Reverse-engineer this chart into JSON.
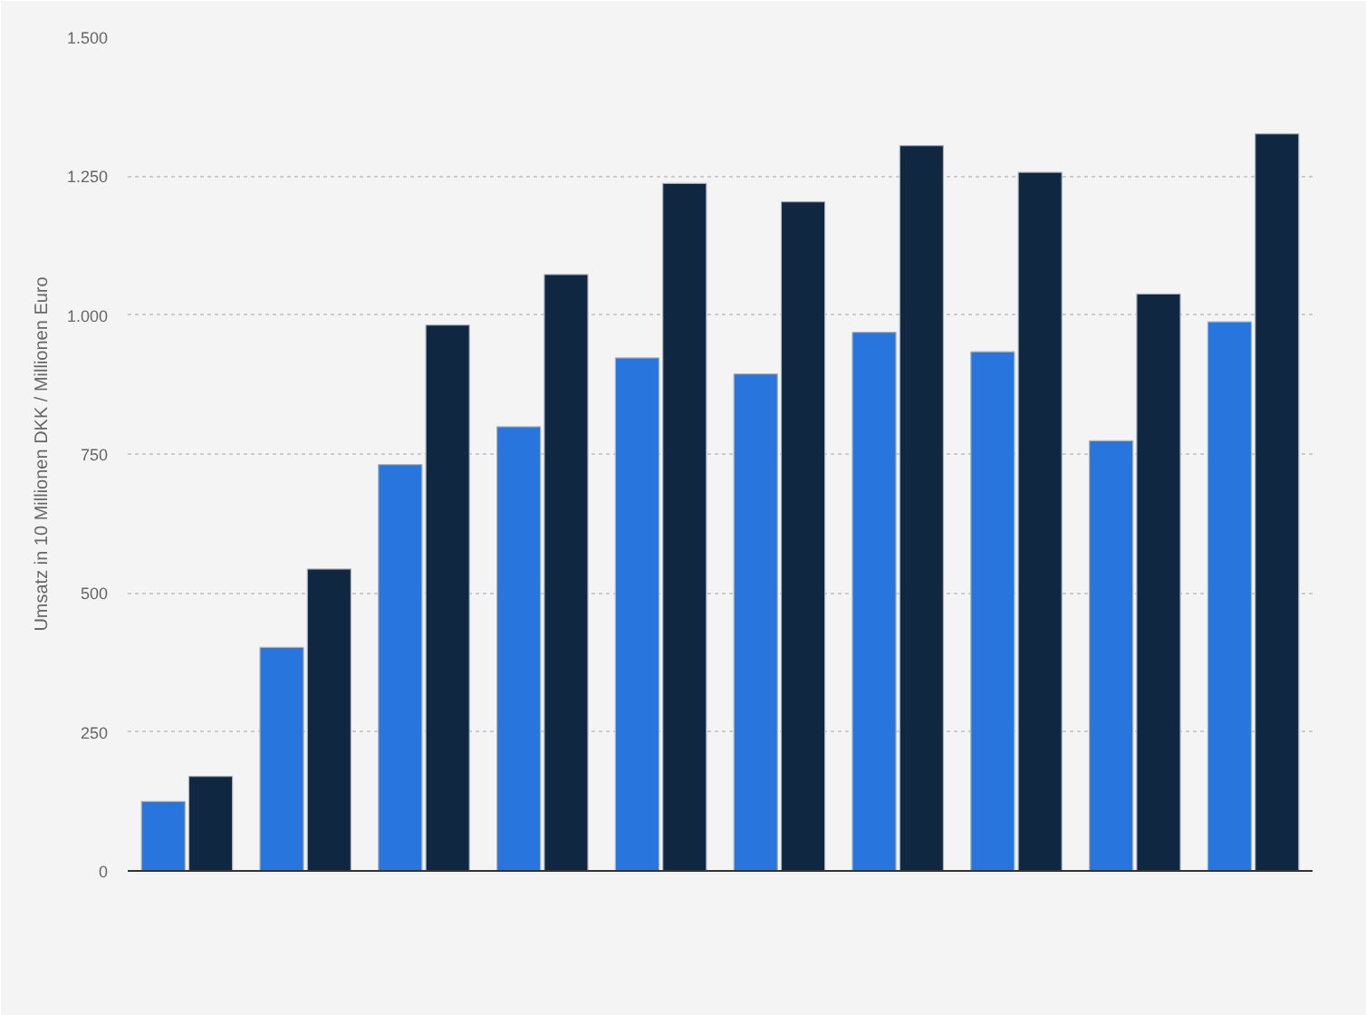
{
  "chart_data": {
    "type": "bar",
    "ylabel": "Umsatz in 10 Millionen DKK / Millionen Euro",
    "categories": [
      null,
      null,
      null,
      null,
      null,
      null,
      null,
      null,
      null,
      null
    ],
    "series": [
      {
        "color": "#2876dd",
        "values": [
          125,
          402,
          731,
          799,
          923,
          894,
          969,
          934,
          774,
          988
        ]
      },
      {
        "color": "#0f2740",
        "values": [
          170,
          543,
          982,
          1073,
          1237,
          1204,
          1305,
          1257,
          1038,
          1326
        ]
      }
    ],
    "ylim": [
      0,
      1500
    ],
    "yticks": [
      0,
      250,
      500,
      750,
      {
        "value": 1000,
        "label": "1.000"
      },
      {
        "value": 1250,
        "label": "1.250"
      },
      {
        "value": 1500,
        "label": "1.500"
      }
    ],
    "grid": "y"
  }
}
